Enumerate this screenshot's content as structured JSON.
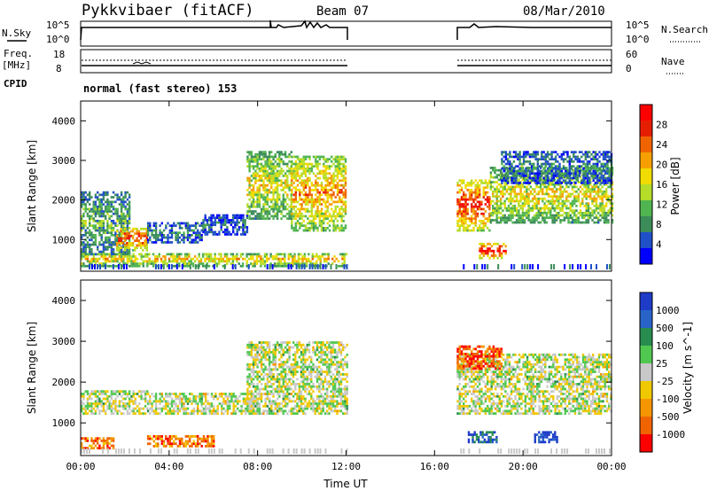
{
  "header": {
    "station": "Pykkvibaer (fitACF)",
    "beam": "Beam 07",
    "date": "08/Mar/2010"
  },
  "top_panels": {
    "nsky_label": "N.Sky",
    "nsky_ticks": [
      "10^5",
      "10^0"
    ],
    "nsearch_label": "N.Search",
    "nsearch_ticks": [
      "10^5",
      "10^0"
    ],
    "freq_label_1": "Freq.",
    "freq_label_2": "[MHz]",
    "freq_ticks": [
      "18",
      "8"
    ],
    "nave_label": "Nave",
    "nave_ticks": [
      "60",
      "0"
    ],
    "cpid_label": "CPID",
    "cpid_text": "normal (fast stereo) 153"
  },
  "colors": {
    "power_scale": [
      "#0000ff",
      "#2050c8",
      "#3c8c5a",
      "#50b450",
      "#b4dc28",
      "#f0dc00",
      "#f5a000",
      "#f06400",
      "#e61e00",
      "#ff0000"
    ],
    "velocity_scale": [
      "#1e3cc8",
      "#2864c8",
      "#288c50",
      "#50c850",
      "#c8c8c8",
      "#f0c800",
      "#f59600",
      "#f06400",
      "#ff0000"
    ],
    "noise_gray": "#c8c8c8"
  },
  "chart_data": [
    {
      "type": "heatmap",
      "name": "power",
      "ylabel": "Slant Range [km]",
      "xlabel": "",
      "yticks": [
        "1000",
        "2000",
        "3000",
        "4000"
      ],
      "ylim": [
        200,
        4500
      ],
      "xlim_hours": [
        0,
        24
      ],
      "colorbar_label": "Power [dB]",
      "colorbar_ticks": [
        "4",
        "8",
        "12",
        "16",
        "20",
        "24",
        "28"
      ],
      "data_gap_hours": [
        12,
        17
      ],
      "regions": [
        {
          "t0": 0.0,
          "t1": 2.2,
          "r0": 600,
          "r1": 2200,
          "level": 0.35
        },
        {
          "t0": 1.6,
          "t1": 3.0,
          "r0": 700,
          "r1": 1300,
          "level": 0.85
        },
        {
          "t0": 3.0,
          "t1": 5.5,
          "r0": 900,
          "r1": 1400,
          "level": 0.25
        },
        {
          "t0": 5.5,
          "t1": 7.5,
          "r0": 1100,
          "r1": 1600,
          "level": 0.2
        },
        {
          "t0": 7.5,
          "t1": 9.5,
          "r0": 1500,
          "r1": 3200,
          "level": 0.55
        },
        {
          "t0": 9.5,
          "t1": 12.0,
          "r0": 1200,
          "r1": 3100,
          "level": 0.7
        },
        {
          "t0": 0.0,
          "t1": 12.0,
          "r0": 300,
          "r1": 650,
          "level": 0.6
        },
        {
          "t0": 17.0,
          "t1": 18.5,
          "r0": 1200,
          "r1": 2500,
          "level": 0.9
        },
        {
          "t0": 18.0,
          "t1": 19.2,
          "r0": 500,
          "r1": 900,
          "level": 0.95
        },
        {
          "t0": 18.5,
          "t1": 24.0,
          "r0": 1400,
          "r1": 2800,
          "level": 0.55
        },
        {
          "t0": 19.0,
          "t1": 24.0,
          "r0": 2400,
          "r1": 3200,
          "level": 0.25
        }
      ]
    },
    {
      "type": "heatmap",
      "name": "velocity",
      "ylabel": "Slant Range [km]",
      "xlabel": "Time UT",
      "yticks": [
        "1000",
        "2000",
        "3000",
        "4000"
      ],
      "ylim": [
        200,
        4500
      ],
      "xlim_hours": [
        0,
        24
      ],
      "xticks": [
        "00:00",
        "04:00",
        "08:00",
        "12:00",
        "16:00",
        "20:00",
        "00:00"
      ],
      "colorbar_label": "Velocity [m s^-1]",
      "colorbar_ticks": [
        "1000",
        "500",
        "100",
        "25",
        "-25",
        "-100",
        "-500",
        "-1000"
      ],
      "data_gap_hours": [
        12,
        17
      ],
      "regions": [
        {
          "t0": 0.0,
          "t1": 3.0,
          "r0": 1200,
          "r1": 1800,
          "level": 0.5
        },
        {
          "t0": 0.0,
          "t1": 1.5,
          "r0": 350,
          "r1": 650,
          "level": 0.8
        },
        {
          "t0": 3.0,
          "t1": 6.0,
          "r0": 400,
          "r1": 700,
          "level": 0.78
        },
        {
          "t0": 3.0,
          "t1": 8.0,
          "r0": 1200,
          "r1": 1700,
          "level": 0.5
        },
        {
          "t0": 7.5,
          "t1": 12.0,
          "r0": 1200,
          "r1": 3000,
          "level": 0.5
        },
        {
          "t0": 17.0,
          "t1": 24.0,
          "r0": 1200,
          "r1": 2700,
          "level": 0.5
        },
        {
          "t0": 17.5,
          "t1": 18.8,
          "r0": 500,
          "r1": 800,
          "level": 0.15
        },
        {
          "t0": 20.5,
          "t1": 21.5,
          "r0": 500,
          "r1": 750,
          "level": 0.05
        },
        {
          "t0": 17.0,
          "t1": 19.0,
          "r0": 2300,
          "r1": 2900,
          "level": 0.85
        }
      ]
    }
  ]
}
